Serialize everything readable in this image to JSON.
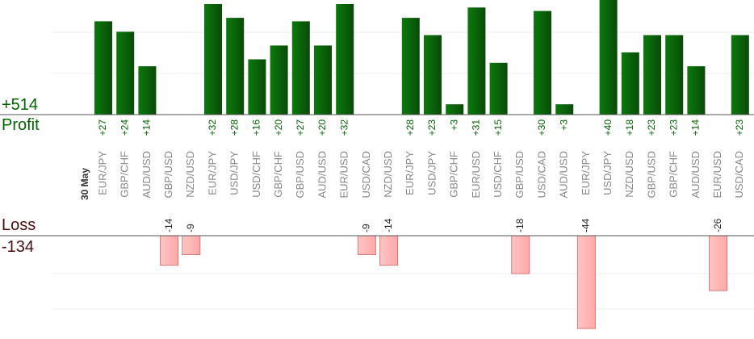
{
  "summary": {
    "profit_total": "+514",
    "profit_label": "Profit",
    "loss_label": "Loss",
    "loss_total": "-134",
    "date_label": "30 May"
  },
  "colors": {
    "profit_bar": "#006400",
    "profit_bar_dark": "#0a4a0a",
    "loss_bar": "#ffb3b3",
    "loss_bar_border": "#d87878",
    "profit_text": "#006400",
    "loss_text": "#4a0f0f"
  },
  "chart_data": {
    "type": "bar",
    "categories": [
      "EUR/JPY",
      "GBP/CHF",
      "AUD/USD",
      "GBP/USD",
      "NZD/USD",
      "EUR/JPY",
      "USD/JPY",
      "USD/CHF",
      "GBP/CHF",
      "GBP/USD",
      "AUD/USD",
      "EUR/USD",
      "USD/CAD",
      "NZD/USD",
      "EUR/JPY",
      "USD/JPY",
      "GBP/CHF",
      "EUR/USD",
      "USD/CHF",
      "GBP/USD",
      "USD/CAD",
      "AUD/USD",
      "EUR/JPY",
      "USD/JPY",
      "NZD/USD",
      "GBP/USD",
      "GBP/CHF",
      "AUD/USD",
      "EUR/USD",
      "USD/CAD"
    ],
    "values": [
      27,
      24,
      14,
      -14,
      -9,
      32,
      28,
      16,
      20,
      27,
      20,
      32,
      -9,
      -14,
      28,
      23,
      3,
      31,
      15,
      -18,
      30,
      3,
      -44,
      40,
      18,
      23,
      23,
      14,
      -26,
      23
    ],
    "value_labels": [
      "+27",
      "+24",
      "+14",
      "-14",
      "-9",
      "+32",
      "+28",
      "+16",
      "+20",
      "+27",
      "+20",
      "+32",
      "-9",
      "-14",
      "+28",
      "+23",
      "+3",
      "+31",
      "+15",
      "-18",
      "+30",
      "+3",
      "-44",
      "+40",
      "+18",
      "+23",
      "+23",
      "+14",
      "-26",
      "+23"
    ]
  }
}
